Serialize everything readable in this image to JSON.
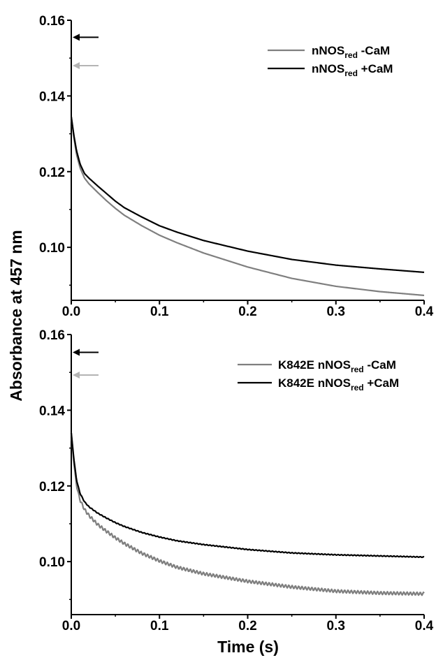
{
  "ylabel": "Absorbance at 457 nm",
  "xlabel": "Time (s)",
  "colors": {
    "minus_cam": "#7f7f7f",
    "plus_cam": "#000000",
    "gray_arrow": "#b4b4b4",
    "black_arrow": "#000000"
  },
  "chart_data": [
    {
      "type": "line",
      "title": "",
      "xlabel": "Time (s)",
      "ylabel": "Absorbance at 457 nm",
      "xlim": [
        0.0,
        0.4
      ],
      "ylim": [
        0.086,
        0.16
      ],
      "xticks": [
        "0.0",
        "0.1",
        "0.2",
        "0.3",
        "0.4"
      ],
      "yticks": [
        "0.10",
        "0.12",
        "0.14",
        "0.16"
      ],
      "grid": false,
      "legend_position": "top-right",
      "annotations": [
        {
          "type": "arrow",
          "y": 0.1555,
          "color": "#000000",
          "direction": "left"
        },
        {
          "type": "arrow",
          "y": 0.148,
          "color": "#b4b4b4",
          "direction": "left"
        }
      ],
      "series": [
        {
          "legend_main": "nNOS",
          "legend_sub": "red",
          "legend_tail": " -CaM",
          "color": "#7f7f7f",
          "noise": 0,
          "x": [
            0.0,
            0.003,
            0.006,
            0.01,
            0.015,
            0.02,
            0.03,
            0.04,
            0.05,
            0.06,
            0.08,
            0.1,
            0.12,
            0.15,
            0.2,
            0.25,
            0.3,
            0.35,
            0.4
          ],
          "y": [
            0.1345,
            0.129,
            0.1245,
            0.121,
            0.1183,
            0.1168,
            0.1145,
            0.1123,
            0.1103,
            0.1085,
            0.1057,
            0.1032,
            0.1012,
            0.0985,
            0.0948,
            0.0918,
            0.0897,
            0.0883,
            0.0873
          ]
        },
        {
          "legend_main": "nNOS",
          "legend_sub": "red",
          "legend_tail": " +CaM",
          "color": "#000000",
          "noise": 0,
          "x": [
            0.0,
            0.003,
            0.006,
            0.01,
            0.015,
            0.02,
            0.03,
            0.04,
            0.05,
            0.06,
            0.08,
            0.1,
            0.12,
            0.15,
            0.2,
            0.25,
            0.3,
            0.35,
            0.4
          ],
          "y": [
            0.1345,
            0.1295,
            0.1255,
            0.122,
            0.1195,
            0.1183,
            0.1162,
            0.1142,
            0.1122,
            0.1105,
            0.108,
            0.1057,
            0.104,
            0.1018,
            0.099,
            0.0968,
            0.0953,
            0.0943,
            0.0934
          ]
        }
      ]
    },
    {
      "type": "line",
      "title": "",
      "xlabel": "Time (s)",
      "ylabel": "Absorbance at 457 nm",
      "xlim": [
        0.0,
        0.4
      ],
      "ylim": [
        0.086,
        0.16
      ],
      "xticks": [
        "0.0",
        "0.1",
        "0.2",
        "0.3",
        "0.4"
      ],
      "yticks": [
        "0.10",
        "0.12",
        "0.14",
        "0.16"
      ],
      "grid": false,
      "legend_position": "top-right",
      "annotations": [
        {
          "type": "arrow",
          "y": 0.1553,
          "color": "#000000",
          "direction": "left"
        },
        {
          "type": "arrow",
          "y": 0.1493,
          "color": "#b4b4b4",
          "direction": "left"
        }
      ],
      "series": [
        {
          "legend_main": "K842E nNOS",
          "legend_sub": "red",
          "legend_tail": " -CaM",
          "color": "#7f7f7f",
          "noise": 0.0004,
          "x": [
            0.0,
            0.003,
            0.006,
            0.01,
            0.015,
            0.02,
            0.03,
            0.04,
            0.05,
            0.06,
            0.08,
            0.1,
            0.12,
            0.15,
            0.2,
            0.25,
            0.3,
            0.35,
            0.4
          ],
          "y": [
            0.134,
            0.126,
            0.12,
            0.1162,
            0.1138,
            0.1122,
            0.1098,
            0.108,
            0.1063,
            0.1048,
            0.1022,
            0.1002,
            0.0985,
            0.0968,
            0.0948,
            0.0933,
            0.0922,
            0.0917,
            0.0915
          ]
        },
        {
          "legend_main": "K842E nNOS",
          "legend_sub": "red",
          "legend_tail": " +CaM",
          "color": "#000000",
          "noise": 0.0001,
          "x": [
            0.0,
            0.003,
            0.006,
            0.01,
            0.015,
            0.02,
            0.03,
            0.04,
            0.05,
            0.06,
            0.08,
            0.1,
            0.12,
            0.15,
            0.2,
            0.25,
            0.3,
            0.35,
            0.4
          ],
          "y": [
            0.134,
            0.127,
            0.1215,
            0.118,
            0.1158,
            0.1145,
            0.1128,
            0.1115,
            0.1103,
            0.1093,
            0.1077,
            0.1065,
            0.1055,
            0.1045,
            0.1032,
            0.1023,
            0.1018,
            0.1015,
            0.1012
          ]
        }
      ]
    }
  ]
}
